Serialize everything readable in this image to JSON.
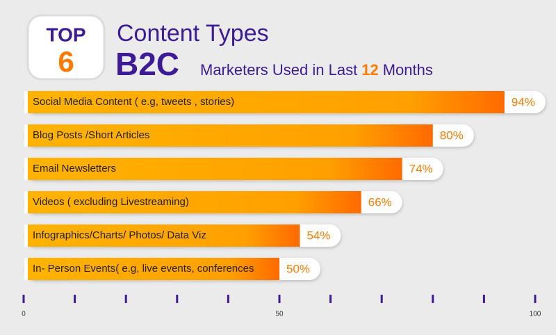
{
  "chart_data": {
    "type": "bar",
    "orientation": "horizontal",
    "badge_top": "TOP",
    "badge_number": "6",
    "title": "Content Types",
    "title_big": "B2C",
    "subtitle_start": "Marketers Used in Last",
    "subtitle_highlight": "12",
    "subtitle_end": "Months",
    "categories": [
      "Social Media Content ( e.g, tweets , stories)",
      "Blog Posts /Short Articles",
      "Email Newsletters",
      "Videos ( excluding Livestreaming)",
      "Infographics/Charts/ Photos/ Data Viz",
      "In- Person Events( e.g, live events, conferences"
    ],
    "values": [
      94,
      80,
      74,
      66,
      54,
      50
    ],
    "value_labels": [
      "94%",
      "80%",
      "74%",
      "66%",
      "54%",
      "50%"
    ],
    "xlim": [
      0,
      100
    ],
    "xticks": [
      0,
      50,
      100
    ],
    "xminorticks": [
      10,
      20,
      30,
      40,
      60,
      70,
      80,
      90
    ],
    "color": "#ff7a00",
    "accent": "#3d1a96"
  }
}
